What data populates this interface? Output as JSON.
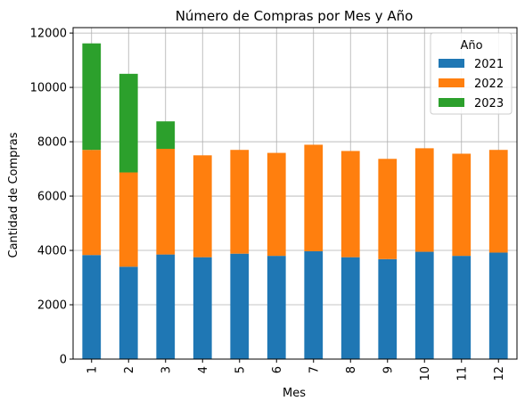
{
  "chart_data": {
    "type": "bar",
    "stacked": true,
    "title": "Número de Compras por Mes y Año",
    "xlabel": "Mes",
    "ylabel": "Cantidad de Compras",
    "categories": [
      "1",
      "2",
      "3",
      "4",
      "5",
      "6",
      "7",
      "8",
      "9",
      "10",
      "11",
      "12"
    ],
    "ylim": [
      0,
      12200
    ],
    "yticks": [
      0,
      2000,
      4000,
      6000,
      8000,
      10000,
      12000
    ],
    "grid": true,
    "legend": {
      "title": "Año",
      "placement": "top-right"
    },
    "series": [
      {
        "name": "2021",
        "color": "#1f77b4",
        "values": [
          3830,
          3400,
          3850,
          3750,
          3880,
          3800,
          3970,
          3750,
          3680,
          3950,
          3800,
          3920
        ]
      },
      {
        "name": "2022",
        "color": "#ff7f0e",
        "values": [
          3870,
          3470,
          3890,
          3750,
          3820,
          3790,
          3920,
          3910,
          3690,
          3810,
          3760,
          3780
        ]
      },
      {
        "name": "2023",
        "color": "#2ca02c",
        "values": [
          3920,
          3630,
          1010,
          0,
          0,
          0,
          0,
          0,
          0,
          0,
          0,
          0
        ]
      }
    ]
  }
}
